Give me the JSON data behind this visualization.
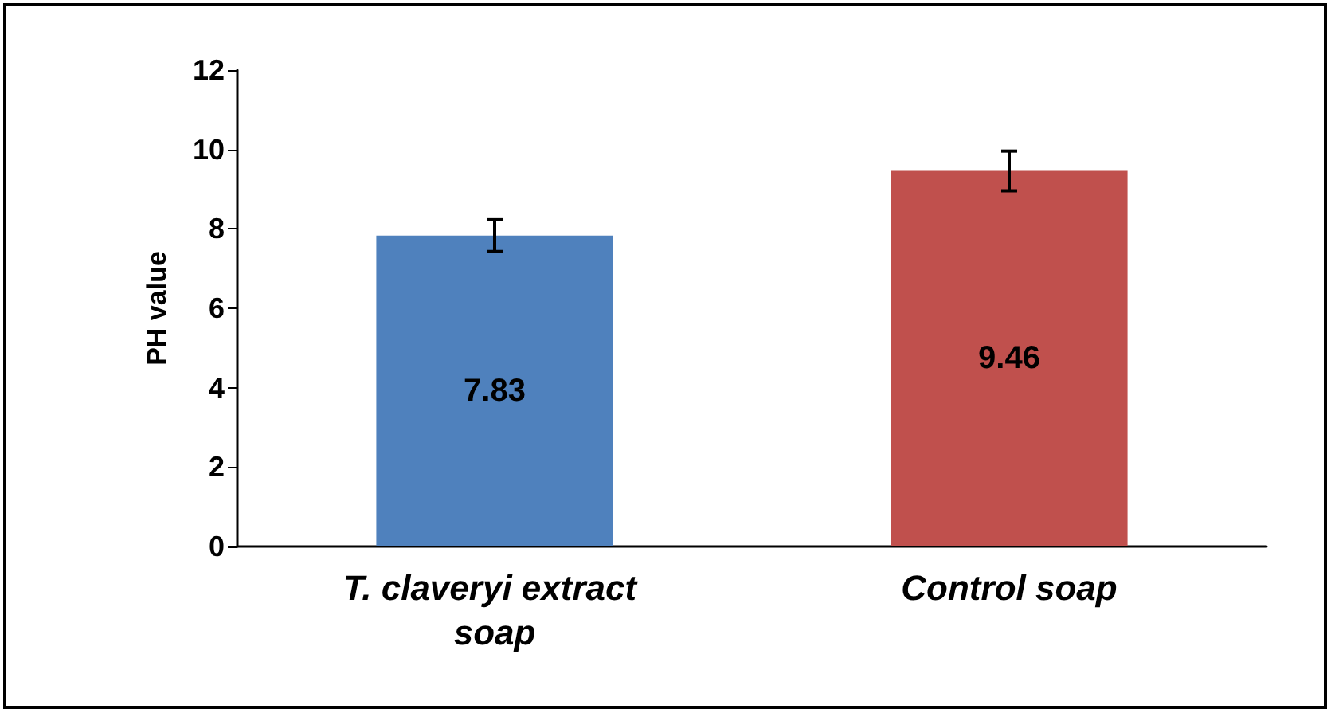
{
  "chart_data": {
    "type": "bar",
    "ylabel": "PH value",
    "categories": [
      "T. claveryi extract soap",
      "Control soap"
    ],
    "values": [
      7.83,
      9.46
    ],
    "colors": [
      "#4f81bd",
      "#c0504d"
    ],
    "errors": [
      0.4,
      0.5
    ],
    "data_labels": true,
    "ylim": [
      0,
      12
    ],
    "yticks": [
      0,
      2,
      4,
      6,
      8,
      10,
      12
    ],
    "grid": false
  }
}
